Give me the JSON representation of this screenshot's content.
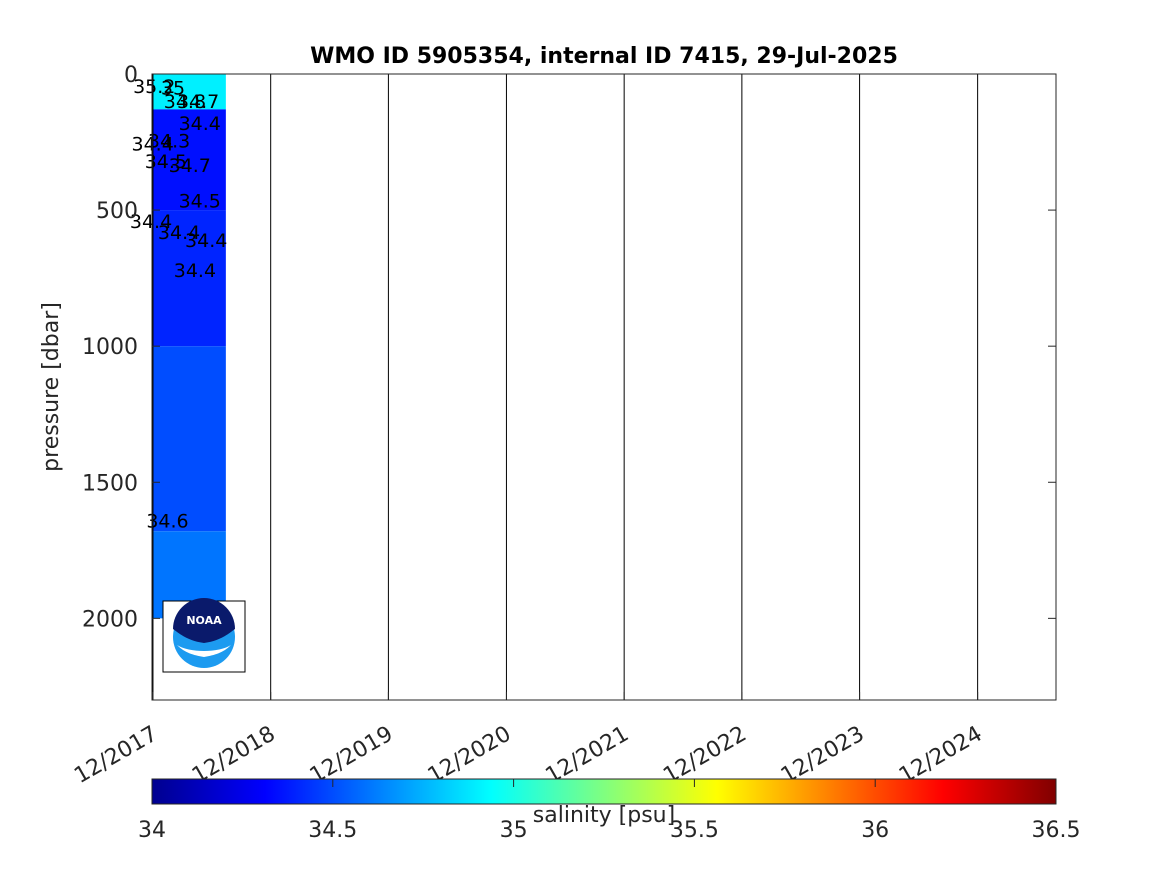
{
  "chart_data": {
    "type": "heatmap",
    "title": "WMO ID 5905354, internal ID 7415, 29-Jul-2025",
    "xlabel": "",
    "ylabel": "pressure [dbar]",
    "y_reversed": true,
    "ylim": [
      0,
      2300
    ],
    "yticks": [
      0,
      500,
      1000,
      1500,
      2000
    ],
    "ytick_labels": [
      "0",
      "500",
      "1000",
      "1500",
      "2000"
    ],
    "xlim": [
      "2017-11-28",
      "2025-08-01"
    ],
    "xticks": [
      "2017-12-01",
      "2018-12-01",
      "2019-12-01",
      "2020-12-01",
      "2021-12-01",
      "2022-12-01",
      "2023-12-01",
      "2024-12-01"
    ],
    "xtick_labels": [
      "12/2017",
      "12/2018",
      "12/2019",
      "12/2020",
      "12/2021",
      "12/2022",
      "12/2023",
      "12/2024"
    ],
    "data_extent_x": [
      "2017-11-28",
      "2018-07-15"
    ],
    "salinity_layers": [
      {
        "top": 0,
        "bottom": 130,
        "value": 34.9
      },
      {
        "top": 130,
        "bottom": 500,
        "value": 34.35
      },
      {
        "top": 500,
        "bottom": 1000,
        "value": 34.4
      },
      {
        "top": 1000,
        "bottom": 1680,
        "value": 34.5
      },
      {
        "top": 1680,
        "bottom": 2000,
        "value": 34.6
      }
    ],
    "contour_labels": [
      {
        "text": "35.2",
        "date": "2017-12-05",
        "p": 45
      },
      {
        "text": "35",
        "date": "2018-02-01",
        "p": 50
      },
      {
        "text": "34.8",
        "date": "2018-03-10",
        "p": 100
      },
      {
        "text": "34.7",
        "date": "2018-04-20",
        "p": 100
      },
      {
        "text": "34.4",
        "date": "2018-04-25",
        "p": 180
      },
      {
        "text": "34.4",
        "date": "2017-11-30",
        "p": 255
      },
      {
        "text": "34.3",
        "date": "2018-01-20",
        "p": 245
      },
      {
        "text": "34.5",
        "date": "2018-01-10",
        "p": 320
      },
      {
        "text": "34.7",
        "date": "2018-03-25",
        "p": 335
      },
      {
        "text": "34.5",
        "date": "2018-04-25",
        "p": 465
      },
      {
        "text": "34.4",
        "date": "2017-11-25",
        "p": 540
      },
      {
        "text": "34.4",
        "date": "2018-02-20",
        "p": 580
      },
      {
        "text": "34.4",
        "date": "2018-05-15",
        "p": 610
      },
      {
        "text": "34.4",
        "date": "2018-04-10",
        "p": 720
      },
      {
        "text": "34.6",
        "date": "2018-01-15",
        "p": 1640
      }
    ],
    "colorbar": {
      "label": "salinity [psu]",
      "min": 34,
      "max": 36.5,
      "ticks": [
        34,
        34.5,
        35,
        35.5,
        36,
        36.5
      ],
      "tick_labels": [
        "34",
        "34.5",
        "35",
        "35.5",
        "36",
        "36.5"
      ],
      "colormap": "jet"
    },
    "grid": "vertical lines at x ticks",
    "logo": "NOAA"
  },
  "colors": {
    "axis": "#262626",
    "grid": "#000000"
  }
}
